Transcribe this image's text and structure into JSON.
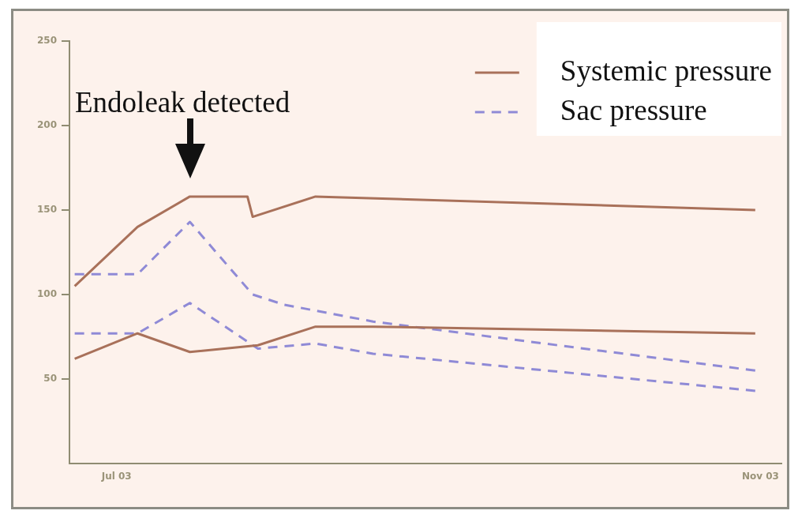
{
  "chart_data": {
    "type": "line",
    "xlim": [
      "2003-06-22",
      "2003-11-05"
    ],
    "xticks": [
      {
        "value": "2003-07-01",
        "label": "Jul 03"
      },
      {
        "value": "2003-11-01",
        "label": "Nov 03"
      }
    ],
    "ylim": [
      0,
      250
    ],
    "yticks": [
      50,
      100,
      150,
      200,
      250
    ],
    "grid": false,
    "legend": "top right",
    "marker": "none",
    "annotations": [
      "Endoleak detected"
    ],
    "series": [
      {
        "name": "Systemic pressure",
        "color": "#a9715a",
        "line_style": "solid",
        "x": [
          "2003-06-23",
          "2003-07-05",
          "2003-07-15",
          "2003-07-26",
          "2003-07-27",
          "2003-08-08",
          "2003-10-31"
        ],
        "values": [
          105,
          140,
          158,
          158,
          146,
          158,
          150
        ]
      },
      {
        "color": "#a9715a",
        "line_style": "solid",
        "x": [
          "2003-06-23",
          "2003-07-05",
          "2003-07-15",
          "2003-07-28",
          "2003-08-08",
          "2003-08-19",
          "2003-10-31"
        ],
        "values": [
          62,
          77,
          66,
          70,
          81,
          81,
          77
        ]
      },
      {
        "name": "Sac pressure",
        "color": "#8f8ad6",
        "line_style": "dashed",
        "x": [
          "2003-06-23",
          "2003-07-05",
          "2003-07-15",
          "2003-07-27",
          "2003-08-02",
          "2003-08-19",
          "2003-10-31"
        ],
        "values": [
          112,
          112,
          143,
          100,
          94,
          84,
          55
        ]
      },
      {
        "color": "#8f8ad6",
        "line_style": "dashed",
        "x": [
          "2003-06-23",
          "2003-07-05",
          "2003-07-15",
          "2003-07-28",
          "2003-08-08",
          "2003-08-19",
          "2003-10-31"
        ],
        "values": [
          77,
          77,
          95,
          68,
          71,
          65,
          43
        ]
      }
    ]
  }
}
